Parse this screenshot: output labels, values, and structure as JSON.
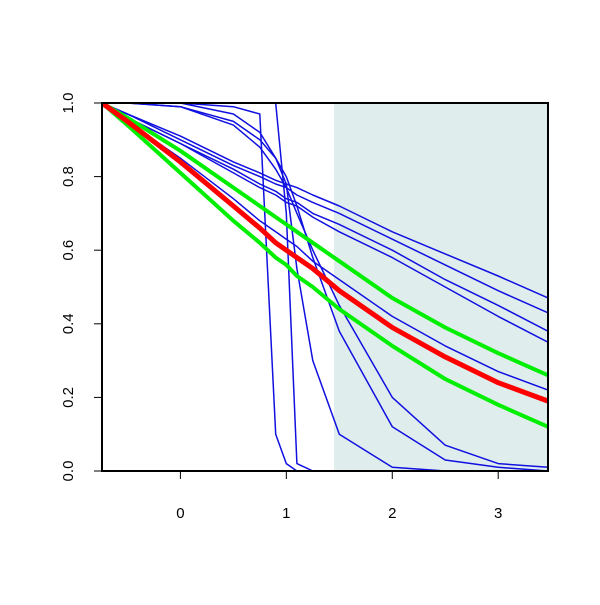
{
  "chart_data": {
    "type": "line",
    "x": [
      -0.74,
      -0.5,
      0,
      0.5,
      0.75,
      0.9,
      1,
      1.1,
      1.25,
      1.5,
      2,
      2.5,
      3,
      3.47
    ],
    "xlim": [
      -0.74,
      3.47
    ],
    "xticks": [
      0,
      1,
      2,
      3
    ],
    "ylim": [
      0,
      1
    ],
    "yticks": [
      {
        "value": 0,
        "label": "0.0"
      },
      {
        "value": 0.2,
        "label": "0.2"
      },
      {
        "value": 0.4,
        "label": "0.4"
      },
      {
        "value": 0.6,
        "label": "0.6"
      },
      {
        "value": 0.8,
        "label": "0.8"
      },
      {
        "value": 1,
        "label": "1.0"
      }
    ],
    "shade_x": [
      1.45,
      3.47
    ],
    "shade_color": "#e0eded",
    "series": [
      {
        "color": "#1010e0",
        "line_width": 1.5,
        "values": [
          1,
          0.97,
          0.91,
          0.84,
          0.81,
          0.79,
          0.78,
          0.77,
          0.75,
          0.72,
          0.65,
          0.59,
          0.53,
          0.47
        ]
      },
      {
        "color": "#1010e0",
        "line_width": 1.5,
        "values": [
          1,
          0.97,
          0.9,
          0.83,
          0.8,
          0.78,
          0.77,
          0.75,
          0.73,
          0.7,
          0.63,
          0.56,
          0.49,
          0.43
        ]
      },
      {
        "color": "#1010e0",
        "line_width": 1.5,
        "values": [
          1,
          0.96,
          0.89,
          0.82,
          0.78,
          0.76,
          0.74,
          0.73,
          0.7,
          0.67,
          0.6,
          0.52,
          0.45,
          0.38
        ]
      },
      {
        "color": "#1010e0",
        "line_width": 1.5,
        "values": [
          1,
          0.96,
          0.89,
          0.81,
          0.77,
          0.75,
          0.73,
          0.72,
          0.69,
          0.65,
          0.58,
          0.5,
          0.42,
          0.35
        ]
      },
      {
        "color": "#1010e0",
        "line_width": 1.5,
        "values": [
          1,
          0.95,
          0.85,
          0.74,
          0.68,
          0.65,
          0.63,
          0.61,
          0.57,
          0.52,
          0.42,
          0.34,
          0.27,
          0.22
        ]
      },
      {
        "color": "#1010e0",
        "line_width": 1.5,
        "values": [
          1,
          1,
          1,
          0.99,
          0.97,
          0.1,
          0.02,
          0,
          0,
          0,
          0,
          0,
          0,
          0
        ]
      },
      {
        "color": "#1010e0",
        "line_width": 1.5,
        "values": [
          1,
          1,
          1,
          1,
          1,
          1,
          0.7,
          0.02,
          0,
          0,
          0,
          0,
          0,
          0
        ]
      },
      {
        "color": "#1010e0",
        "line_width": 1.5,
        "values": [
          1,
          1,
          1,
          0.97,
          0.92,
          0.85,
          0.78,
          0.55,
          0.3,
          0.1,
          0.01,
          0,
          0,
          0
        ]
      },
      {
        "color": "#1010e0",
        "line_width": 1.5,
        "values": [
          1,
          1,
          0.99,
          0.95,
          0.9,
          0.85,
          0.8,
          0.72,
          0.58,
          0.38,
          0.12,
          0.03,
          0.01,
          0
        ]
      },
      {
        "color": "#1010e0",
        "line_width": 1.5,
        "values": [
          1,
          1,
          0.99,
          0.94,
          0.88,
          0.82,
          0.77,
          0.7,
          0.6,
          0.45,
          0.2,
          0.07,
          0.02,
          0.01
        ]
      },
      {
        "color": "#00ee00",
        "line_width": 4,
        "values": [
          1,
          0.96,
          0.87,
          0.77,
          0.72,
          0.69,
          0.67,
          0.65,
          0.62,
          0.57,
          0.47,
          0.39,
          0.32,
          0.26
        ]
      },
      {
        "color": "#00ee00",
        "line_width": 4,
        "values": [
          1,
          0.94,
          0.81,
          0.68,
          0.62,
          0.58,
          0.56,
          0.53,
          0.5,
          0.44,
          0.34,
          0.25,
          0.18,
          0.12
        ]
      },
      {
        "color": "#ff0000",
        "line_width": 5,
        "values": [
          1,
          0.95,
          0.84,
          0.72,
          0.66,
          0.62,
          0.6,
          0.58,
          0.55,
          0.49,
          0.39,
          0.31,
          0.24,
          0.19
        ]
      }
    ]
  }
}
